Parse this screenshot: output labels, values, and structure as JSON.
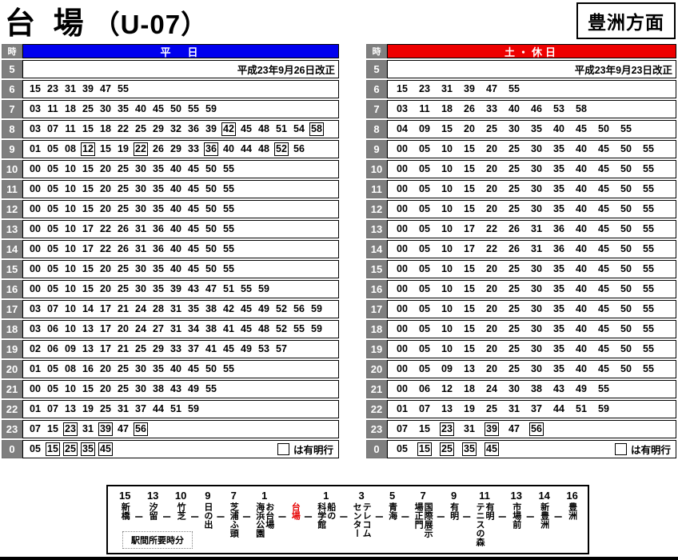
{
  "page": {
    "station_name": "台 場",
    "station_code": "（U-07）",
    "direction": "豊洲方面"
  },
  "hour_symbol": "時",
  "legend_note": "は有明行",
  "tables": [
    {
      "name": "weekday",
      "label": "平　日",
      "color": "#0000ee",
      "revision": "平成23年9月26日改正",
      "rows": [
        {
          "hour": "5",
          "note": "平成23年9月26日改正"
        },
        {
          "hour": "6",
          "minutes": [
            "15",
            "23",
            "31",
            "39",
            "47",
            "55"
          ]
        },
        {
          "hour": "7",
          "minutes": [
            "03",
            "11",
            "18",
            "25",
            "30",
            "35",
            "40",
            "45",
            "50",
            "55",
            "59"
          ]
        },
        {
          "hour": "8",
          "minutes": [
            "03",
            "07",
            "11",
            "15",
            "18",
            "22",
            "25",
            "29",
            "32",
            "36",
            "39",
            "42",
            "45",
            "48",
            "51",
            "54",
            "58"
          ],
          "boxed": [
            "42",
            "58"
          ]
        },
        {
          "hour": "9",
          "minutes": [
            "01",
            "05",
            "08",
            "12",
            "15",
            "19",
            "22",
            "26",
            "29",
            "33",
            "36",
            "40",
            "44",
            "48",
            "52",
            "56"
          ],
          "boxed": [
            "12",
            "22",
            "36",
            "52"
          ]
        },
        {
          "hour": "10",
          "minutes": [
            "00",
            "05",
            "10",
            "15",
            "20",
            "25",
            "30",
            "35",
            "40",
            "45",
            "50",
            "55"
          ]
        },
        {
          "hour": "11",
          "minutes": [
            "00",
            "05",
            "10",
            "15",
            "20",
            "25",
            "30",
            "35",
            "40",
            "45",
            "50",
            "55"
          ]
        },
        {
          "hour": "12",
          "minutes": [
            "00",
            "05",
            "10",
            "15",
            "20",
            "25",
            "30",
            "35",
            "40",
            "45",
            "50",
            "55"
          ]
        },
        {
          "hour": "13",
          "minutes": [
            "00",
            "05",
            "10",
            "17",
            "22",
            "26",
            "31",
            "36",
            "40",
            "45",
            "50",
            "55"
          ]
        },
        {
          "hour": "14",
          "minutes": [
            "00",
            "05",
            "10",
            "17",
            "22",
            "26",
            "31",
            "36",
            "40",
            "45",
            "50",
            "55"
          ]
        },
        {
          "hour": "15",
          "minutes": [
            "00",
            "05",
            "10",
            "15",
            "20",
            "25",
            "30",
            "35",
            "40",
            "45",
            "50",
            "55"
          ]
        },
        {
          "hour": "16",
          "minutes": [
            "00",
            "05",
            "10",
            "15",
            "20",
            "25",
            "30",
            "35",
            "39",
            "43",
            "47",
            "51",
            "55",
            "59"
          ]
        },
        {
          "hour": "17",
          "minutes": [
            "03",
            "07",
            "10",
            "14",
            "17",
            "21",
            "24",
            "28",
            "31",
            "35",
            "38",
            "42",
            "45",
            "49",
            "52",
            "56",
            "59"
          ]
        },
        {
          "hour": "18",
          "minutes": [
            "03",
            "06",
            "10",
            "13",
            "17",
            "20",
            "24",
            "27",
            "31",
            "34",
            "38",
            "41",
            "45",
            "48",
            "52",
            "55",
            "59"
          ]
        },
        {
          "hour": "19",
          "minutes": [
            "02",
            "06",
            "09",
            "13",
            "17",
            "21",
            "25",
            "29",
            "33",
            "37",
            "41",
            "45",
            "49",
            "53",
            "57"
          ]
        },
        {
          "hour": "20",
          "minutes": [
            "01",
            "05",
            "08",
            "16",
            "20",
            "25",
            "30",
            "35",
            "40",
            "45",
            "50",
            "55"
          ]
        },
        {
          "hour": "21",
          "minutes": [
            "00",
            "05",
            "10",
            "15",
            "20",
            "25",
            "30",
            "38",
            "43",
            "49",
            "55"
          ]
        },
        {
          "hour": "22",
          "minutes": [
            "01",
            "07",
            "13",
            "19",
            "25",
            "31",
            "37",
            "44",
            "51",
            "59"
          ]
        },
        {
          "hour": "23",
          "minutes": [
            "07",
            "15",
            "23",
            "31",
            "39",
            "47",
            "56"
          ],
          "boxed": [
            "23",
            "39",
            "56"
          ]
        },
        {
          "hour": "0",
          "minutes": [
            "05",
            "15",
            "25",
            "35",
            "45"
          ],
          "boxed": [
            "15",
            "25",
            "35",
            "45"
          ],
          "legend": true
        }
      ]
    },
    {
      "name": "holiday",
      "label": "土・休日",
      "color": "#ee0000",
      "revision": "平成23年9月23日改正",
      "rows": [
        {
          "hour": "5",
          "note": "平成23年9月23日改正"
        },
        {
          "hour": "6",
          "minutes": [
            "15",
            "23",
            "31",
            "39",
            "47",
            "55"
          ]
        },
        {
          "hour": "7",
          "minutes": [
            "03",
            "11",
            "18",
            "26",
            "33",
            "40",
            "46",
            "53",
            "58"
          ]
        },
        {
          "hour": "8",
          "minutes": [
            "04",
            "09",
            "15",
            "20",
            "25",
            "30",
            "35",
            "40",
            "45",
            "50",
            "55"
          ]
        },
        {
          "hour": "9",
          "minutes": [
            "00",
            "05",
            "10",
            "15",
            "20",
            "25",
            "30",
            "35",
            "40",
            "45",
            "50",
            "55"
          ]
        },
        {
          "hour": "10",
          "minutes": [
            "00",
            "05",
            "10",
            "15",
            "20",
            "25",
            "30",
            "35",
            "40",
            "45",
            "50",
            "55"
          ]
        },
        {
          "hour": "11",
          "minutes": [
            "00",
            "05",
            "10",
            "15",
            "20",
            "25",
            "30",
            "35",
            "40",
            "45",
            "50",
            "55"
          ]
        },
        {
          "hour": "12",
          "minutes": [
            "00",
            "05",
            "10",
            "15",
            "20",
            "25",
            "30",
            "35",
            "40",
            "45",
            "50",
            "55"
          ]
        },
        {
          "hour": "13",
          "minutes": [
            "00",
            "05",
            "10",
            "17",
            "22",
            "26",
            "31",
            "36",
            "40",
            "45",
            "50",
            "55"
          ]
        },
        {
          "hour": "14",
          "minutes": [
            "00",
            "05",
            "10",
            "17",
            "22",
            "26",
            "31",
            "36",
            "40",
            "45",
            "50",
            "55"
          ]
        },
        {
          "hour": "15",
          "minutes": [
            "00",
            "05",
            "10",
            "15",
            "20",
            "25",
            "30",
            "35",
            "40",
            "45",
            "50",
            "55"
          ]
        },
        {
          "hour": "16",
          "minutes": [
            "00",
            "05",
            "10",
            "15",
            "20",
            "25",
            "30",
            "35",
            "40",
            "45",
            "50",
            "55"
          ]
        },
        {
          "hour": "17",
          "minutes": [
            "00",
            "05",
            "10",
            "15",
            "20",
            "25",
            "30",
            "35",
            "40",
            "45",
            "50",
            "55"
          ]
        },
        {
          "hour": "18",
          "minutes": [
            "00",
            "05",
            "10",
            "15",
            "20",
            "25",
            "30",
            "35",
            "40",
            "45",
            "50",
            "55"
          ]
        },
        {
          "hour": "19",
          "minutes": [
            "00",
            "05",
            "10",
            "15",
            "20",
            "25",
            "30",
            "35",
            "40",
            "45",
            "50",
            "55"
          ]
        },
        {
          "hour": "20",
          "minutes": [
            "00",
            "05",
            "09",
            "13",
            "20",
            "25",
            "30",
            "35",
            "40",
            "45",
            "50",
            "55"
          ]
        },
        {
          "hour": "21",
          "minutes": [
            "00",
            "06",
            "12",
            "18",
            "24",
            "30",
            "38",
            "43",
            "49",
            "55"
          ]
        },
        {
          "hour": "22",
          "minutes": [
            "01",
            "07",
            "13",
            "19",
            "25",
            "31",
            "37",
            "44",
            "51",
            "59"
          ]
        },
        {
          "hour": "23",
          "minutes": [
            "07",
            "15",
            "23",
            "31",
            "39",
            "47",
            "56"
          ],
          "boxed": [
            "23",
            "39",
            "56"
          ]
        },
        {
          "hour": "0",
          "minutes": [
            "05",
            "15",
            "25",
            "35",
            "45"
          ],
          "boxed": [
            "15",
            "25",
            "35",
            "45"
          ],
          "legend": true
        }
      ]
    }
  ],
  "route_map": {
    "label": "駅間所要時分",
    "current_color": "#e60000",
    "stations": [
      {
        "time": "15",
        "name": "新橋",
        "lines": [
          "新橋"
        ]
      },
      {
        "time": "13",
        "name": "汐留",
        "lines": [
          "汐留"
        ]
      },
      {
        "time": "10",
        "name": "竹芝",
        "lines": [
          "竹芝"
        ]
      },
      {
        "time": "9",
        "name": "日の出",
        "lines": [
          "日の出"
        ]
      },
      {
        "time": "7",
        "name": "芝浦ふ頭",
        "lines": [
          "芝浦ふ頭"
        ]
      },
      {
        "time": "1",
        "name": "お台場海浜公園",
        "lines": [
          "お台場",
          "海浜公園"
        ]
      },
      {
        "time": "",
        "name": "台場",
        "lines": [
          "台場"
        ],
        "current": true
      },
      {
        "time": "1",
        "name": "船の科学館",
        "lines": [
          "船の",
          "科学館"
        ]
      },
      {
        "time": "3",
        "name": "テレコムセンター",
        "lines": [
          "テレコム",
          "センター"
        ]
      },
      {
        "time": "5",
        "name": "青海",
        "lines": [
          "青海"
        ]
      },
      {
        "time": "7",
        "name": "国際展示場正門",
        "lines": [
          "国際展示",
          "場正門"
        ]
      },
      {
        "time": "9",
        "name": "有明",
        "lines": [
          "有明"
        ]
      },
      {
        "time": "11",
        "name": "有明テニスの森",
        "lines": [
          "有明",
          "テニスの森"
        ]
      },
      {
        "time": "13",
        "name": "市場前",
        "lines": [
          "市場前"
        ]
      },
      {
        "time": "14",
        "name": "新豊洲",
        "lines": [
          "新豊洲"
        ]
      },
      {
        "time": "16",
        "name": "豊洲",
        "lines": [
          "豊洲"
        ]
      }
    ]
  }
}
